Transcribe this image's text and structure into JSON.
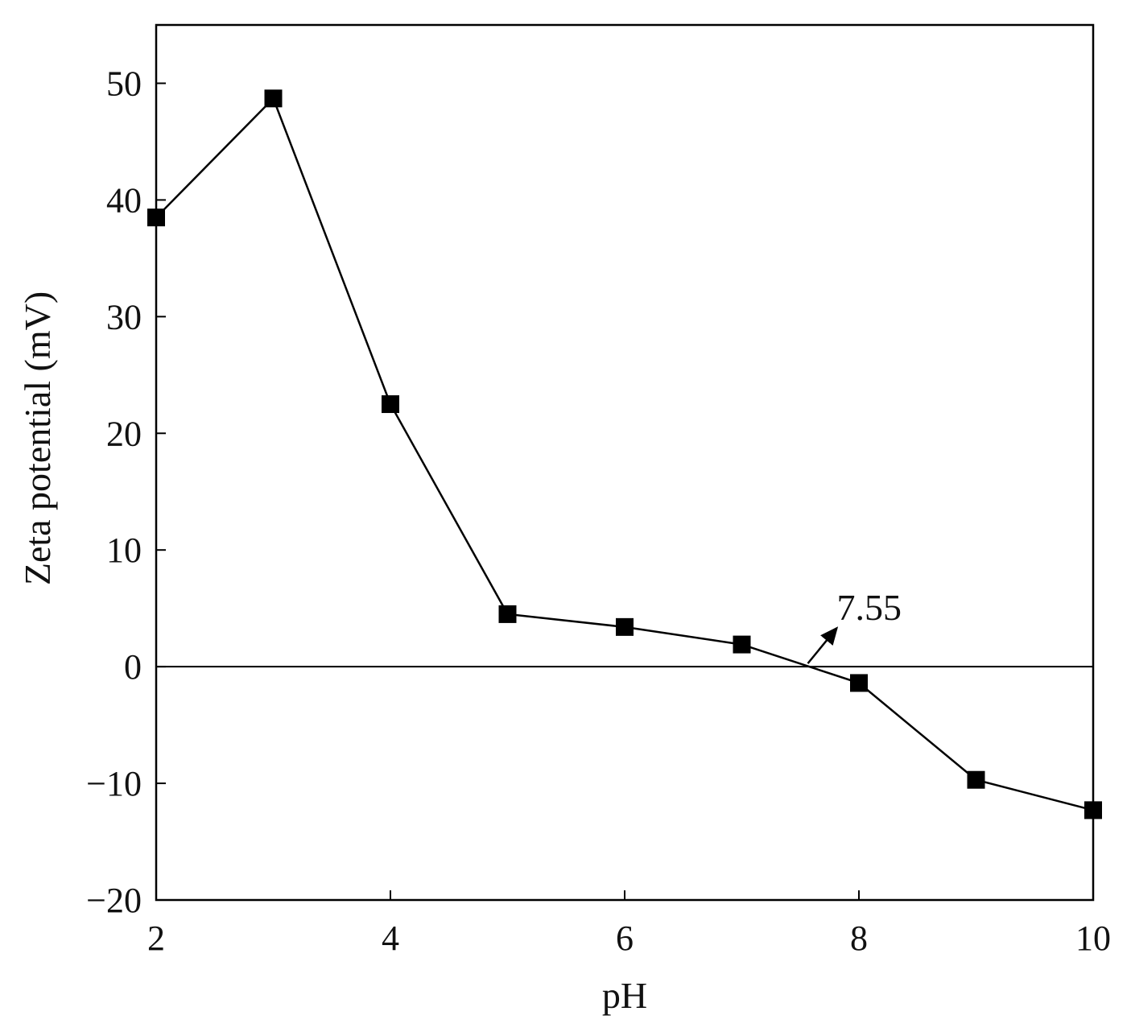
{
  "chart_data": {
    "type": "line",
    "title": "",
    "xlabel": "pH",
    "ylabel": "Zeta potential (mV)",
    "xlim": [
      2,
      10
    ],
    "ylim": [
      -20,
      55
    ],
    "xticks": [
      2,
      4,
      6,
      8,
      10
    ],
    "yticks": [
      -20,
      -10,
      0,
      10,
      20,
      30,
      40,
      50
    ],
    "xtick_labels": [
      "2",
      "4",
      "6",
      "8",
      "10"
    ],
    "ytick_labels": [
      "−20",
      "−10",
      "0",
      "10",
      "20",
      "30",
      "40",
      "50"
    ],
    "grid": false,
    "legend": "none",
    "series": [
      {
        "marker": "square",
        "color": "#000000",
        "x": [
          2,
          3,
          4,
          5,
          6,
          7,
          8,
          9,
          10
        ],
        "y": [
          38.5,
          48.7,
          22.5,
          4.5,
          3.4,
          1.9,
          -1.4,
          -9.7,
          -12.3
        ]
      }
    ],
    "reference_line": {
      "y": 0
    },
    "annotation": {
      "text": "7.55",
      "x": 7.55,
      "y": 0
    }
  }
}
